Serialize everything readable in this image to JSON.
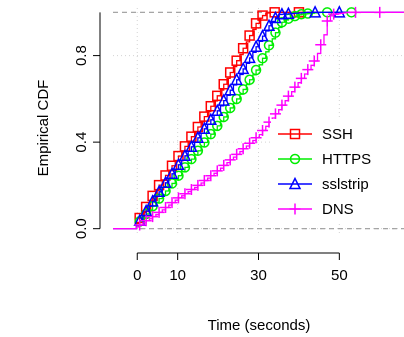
{
  "chart_data": {
    "type": "line",
    "title": "",
    "xlabel": "Time (seconds)",
    "ylabel": "Empirical CDF",
    "xlim": [
      -6,
      66
    ],
    "ylim": [
      -0.02,
      1.02
    ],
    "x_ticks": [
      0,
      10,
      30,
      50
    ],
    "y_ticks": [
      0.0,
      0.4,
      0.8
    ],
    "x_tick_labels": [
      "0",
      "10",
      "30",
      "50"
    ],
    "y_tick_labels": [
      "0.0",
      "0.4",
      "0.8"
    ],
    "grid": true,
    "reference_lines": [
      0,
      1
    ],
    "legend_position": "bottom-right",
    "series": [
      {
        "name": "SSH",
        "color": "#ff0000",
        "marker": "square",
        "points": [
          [
            -1,
            0
          ],
          [
            0,
            0.03
          ],
          [
            5,
            0.19
          ],
          [
            10,
            0.33
          ],
          [
            15,
            0.47
          ],
          [
            20,
            0.62
          ],
          [
            25,
            0.79
          ],
          [
            28,
            0.9
          ],
          [
            30,
            0.97
          ],
          [
            32,
            1.0
          ],
          [
            60,
            1.0
          ]
        ]
      },
      {
        "name": "HTTPS",
        "color": "#00ee00",
        "marker": "circle",
        "points": [
          [
            -1,
            0
          ],
          [
            0,
            0.02
          ],
          [
            5,
            0.13
          ],
          [
            10,
            0.24
          ],
          [
            15,
            0.36
          ],
          [
            20,
            0.48
          ],
          [
            25,
            0.61
          ],
          [
            30,
            0.75
          ],
          [
            34,
            0.9
          ],
          [
            36,
            0.96
          ],
          [
            40,
            0.99
          ],
          [
            45,
            1.0
          ],
          [
            60,
            1.0
          ]
        ]
      },
      {
        "name": "sslstrip",
        "color": "#0000ff",
        "marker": "triangle",
        "points": [
          [
            -1,
            0
          ],
          [
            0,
            0.02
          ],
          [
            5,
            0.16
          ],
          [
            10,
            0.29
          ],
          [
            15,
            0.42
          ],
          [
            20,
            0.55
          ],
          [
            25,
            0.7
          ],
          [
            30,
            0.86
          ],
          [
            33,
            0.95
          ],
          [
            35,
            0.99
          ],
          [
            42,
            1.0
          ],
          [
            60,
            1.0
          ]
        ]
      },
      {
        "name": "DNS",
        "color": "#ff00ff",
        "marker": "plus",
        "points": [
          [
            -1,
            0
          ],
          [
            0,
            0.01
          ],
          [
            5,
            0.07
          ],
          [
            10,
            0.14
          ],
          [
            15,
            0.2
          ],
          [
            20,
            0.27
          ],
          [
            25,
            0.35
          ],
          [
            30,
            0.43
          ],
          [
            35,
            0.55
          ],
          [
            40,
            0.68
          ],
          [
            44,
            0.78
          ],
          [
            46,
            0.88
          ],
          [
            47,
            0.96
          ],
          [
            48,
            0.99
          ],
          [
            52,
            1.0
          ],
          [
            66,
            1.0
          ]
        ]
      }
    ]
  }
}
